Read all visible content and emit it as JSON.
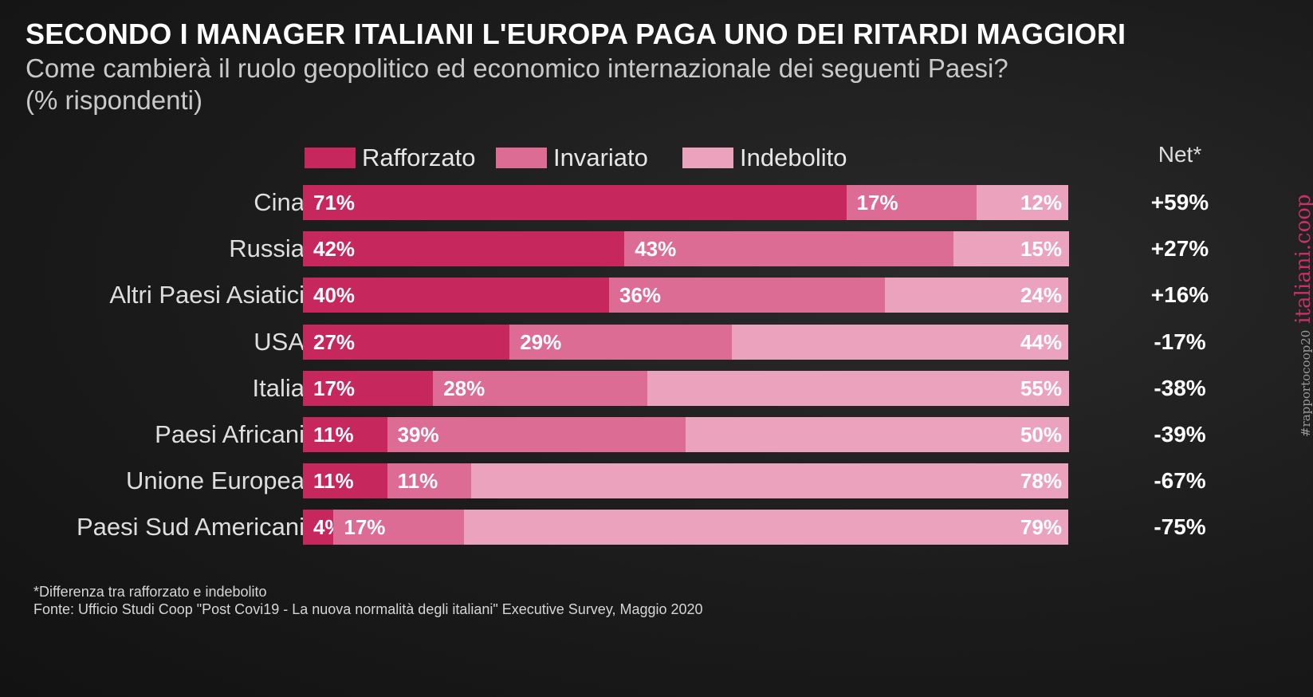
{
  "chart_data": {
    "type": "bar",
    "orientation": "horizontal",
    "stacked": true,
    "title": "SECONDO I MANAGER ITALIANI L'EUROPA PAGA UNO DEI RITARDI MAGGIORI",
    "subtitle_line1": "Come cambierà il ruolo geopolitico ed economico internazionale dei seguenti Paesi?",
    "subtitle_line2": "(% rispondenti)",
    "unit": "%",
    "categories": [
      "Cina",
      "Russia",
      "Altri Paesi Asiatici",
      "USA",
      "Italia",
      "Paesi Africani",
      "Unione Europea",
      "Paesi Sud Americani"
    ],
    "series": [
      {
        "name": "Rafforzato",
        "color": "#c6285e",
        "values": [
          71,
          42,
          40,
          27,
          17,
          11,
          11,
          4
        ]
      },
      {
        "name": "Invariato",
        "color": "#dc6c93",
        "values": [
          17,
          43,
          36,
          29,
          28,
          39,
          11,
          17
        ]
      },
      {
        "name": "Indebolito",
        "color": "#eba3bd",
        "values": [
          12,
          15,
          24,
          44,
          55,
          50,
          78,
          79
        ]
      }
    ],
    "net_header": "Net*",
    "net_values": [
      "+59%",
      "+27%",
      "+16%",
      "-17%",
      "-38%",
      "-39%",
      "-67%",
      "-75%"
    ],
    "xlim": [
      0,
      100
    ],
    "legend_position": "top"
  },
  "footnotes": {
    "note": "*Differenza tra rafforzato e indebolito",
    "source": "Fonte: Ufficio Studi Coop \"Post Covi19 - La nuova normalità degli italiani\" Executive Survey, Maggio 2020"
  },
  "watermark": {
    "hashtag": "#rapportocoop20",
    "brand": "italiani.coop"
  }
}
